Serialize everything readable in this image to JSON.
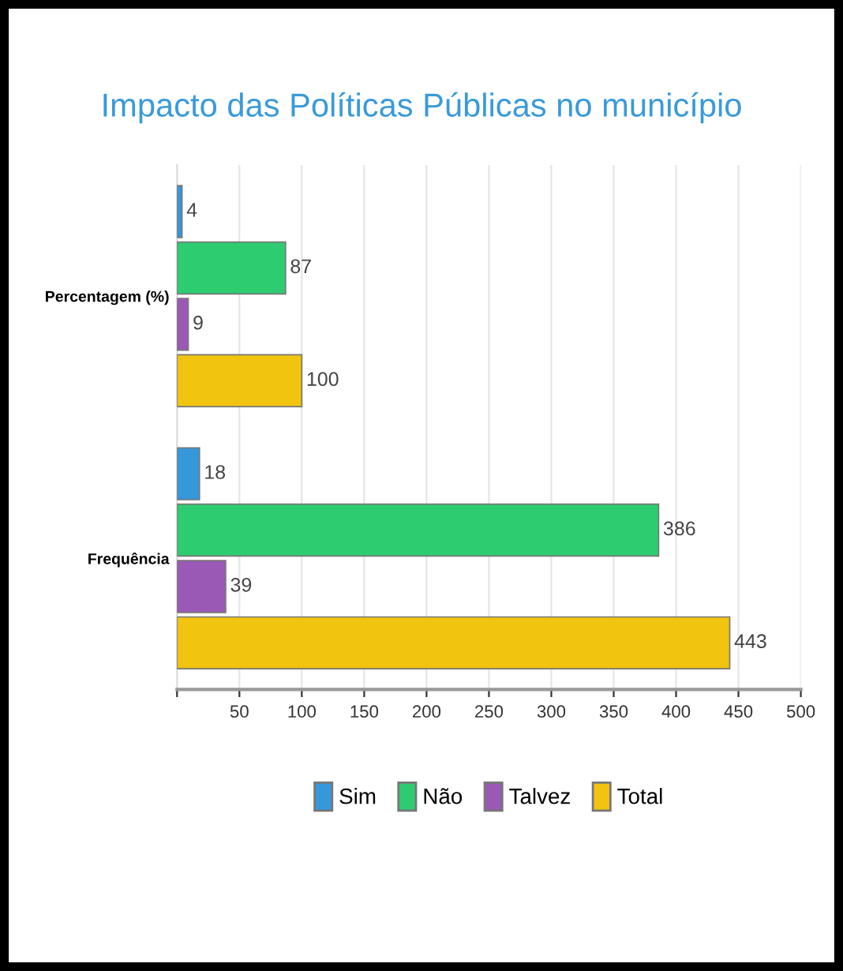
{
  "chart_data": {
    "type": "bar",
    "orientation": "horizontal",
    "title": "Impacto das Políticas Públicas no município",
    "categories": [
      "Percentagem (%)",
      "Frequência"
    ],
    "series": [
      {
        "name": "Sim",
        "color": "#3498db",
        "values": [
          4,
          18
        ]
      },
      {
        "name": "Não",
        "color": "#2ecc71",
        "values": [
          87,
          386
        ]
      },
      {
        "name": "Talvez",
        "color": "#9b59b6",
        "values": [
          9,
          39
        ]
      },
      {
        "name": "Total",
        "color": "#f1c40f",
        "values": [
          100,
          443
        ]
      }
    ],
    "xlim": [
      0,
      500
    ],
    "xticks": [
      {
        "value": 0,
        "label": null
      },
      50,
      100,
      150,
      200,
      250,
      300,
      350,
      400,
      450,
      500
    ],
    "grid": "x",
    "legend": "bottom",
    "data_labels": true
  }
}
